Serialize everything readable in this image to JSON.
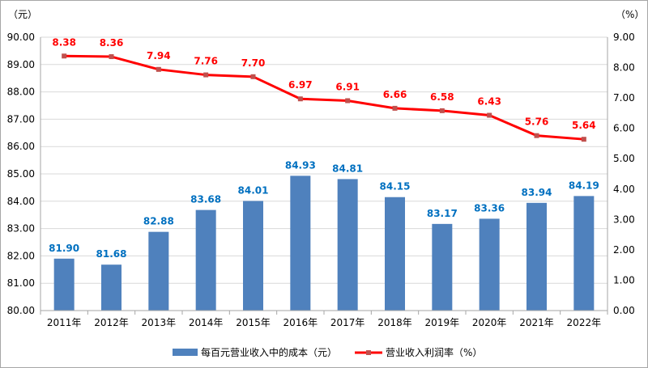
{
  "chart_data": {
    "type": "bar",
    "categories": [
      "2011年",
      "2012年",
      "2013年",
      "2014年",
      "2015年",
      "2016年",
      "2017年",
      "2018年",
      "2019年",
      "2020年",
      "2021年",
      "2022年"
    ],
    "series": [
      {
        "name": "每百元营业收入中的成本（元）",
        "type": "bar",
        "axis": "left",
        "color": "#4f81bd",
        "label_color": "#0070c0",
        "values": [
          81.9,
          81.68,
          82.88,
          83.68,
          84.01,
          84.93,
          84.81,
          84.15,
          83.17,
          83.36,
          83.94,
          84.19
        ],
        "labels": [
          "81.90",
          "81.68",
          "82.88",
          "83.68",
          "84.01",
          "84.93",
          "84.81",
          "84.15",
          "83.17",
          "83.36",
          "83.94",
          "84.19"
        ]
      },
      {
        "name": "营业收入利润率（%）",
        "type": "line",
        "axis": "right",
        "color": "#ff0000",
        "marker_color": "#c0504d",
        "values": [
          8.38,
          8.36,
          7.94,
          7.76,
          7.7,
          6.97,
          6.91,
          6.66,
          6.58,
          6.43,
          5.76,
          5.64
        ],
        "labels": [
          "8.38",
          "8.36",
          "7.94",
          "7.76",
          "7.70",
          "6.97",
          "6.91",
          "6.66",
          "6.58",
          "6.43",
          "5.76",
          "5.64"
        ]
      }
    ],
    "y_left": {
      "unit": "（元）",
      "ylim": [
        80,
        90
      ],
      "ticks": [
        "80.00",
        "81.00",
        "82.00",
        "83.00",
        "84.00",
        "85.00",
        "86.00",
        "87.00",
        "88.00",
        "89.00",
        "90.00"
      ]
    },
    "y_right": {
      "unit": "（%）",
      "ylim": [
        0,
        9
      ],
      "ticks": [
        "0.00",
        "1.00",
        "2.00",
        "3.00",
        "4.00",
        "5.00",
        "6.00",
        "7.00",
        "8.00",
        "9.00"
      ]
    },
    "grid": true,
    "legend_position": "bottom"
  }
}
